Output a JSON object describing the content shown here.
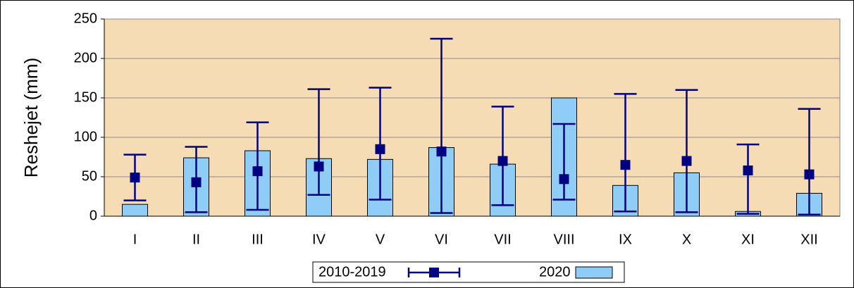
{
  "chart_data": {
    "type": "bar",
    "y_label": "Reshejet (mm)",
    "categories": [
      "I",
      "II",
      "III",
      "IV",
      "V",
      "VI",
      "VII",
      "VIII",
      "IX",
      "X",
      "XI",
      "XII"
    ],
    "series": [
      {
        "name": "2010-2019",
        "color": "#000080",
        "values": [
          49,
          43,
          57,
          63,
          85,
          82,
          70,
          47,
          65,
          70,
          58,
          53
        ],
        "low": [
          20,
          5,
          8,
          27,
          21,
          4,
          14,
          21,
          6,
          5,
          3,
          2
        ],
        "high": [
          78,
          88,
          119,
          161,
          163,
          225,
          139,
          117,
          155,
          160,
          91,
          136
        ]
      },
      {
        "name": "2020",
        "color": "#8fcdf7",
        "values": [
          15,
          74,
          83,
          73,
          72,
          87,
          66,
          150,
          39,
          55,
          6,
          29
        ]
      }
    ],
    "ylim": [
      0,
      250
    ],
    "yticks": [
      0,
      50,
      100,
      150,
      200,
      250
    ],
    "grid": true,
    "legend": "bottom"
  }
}
